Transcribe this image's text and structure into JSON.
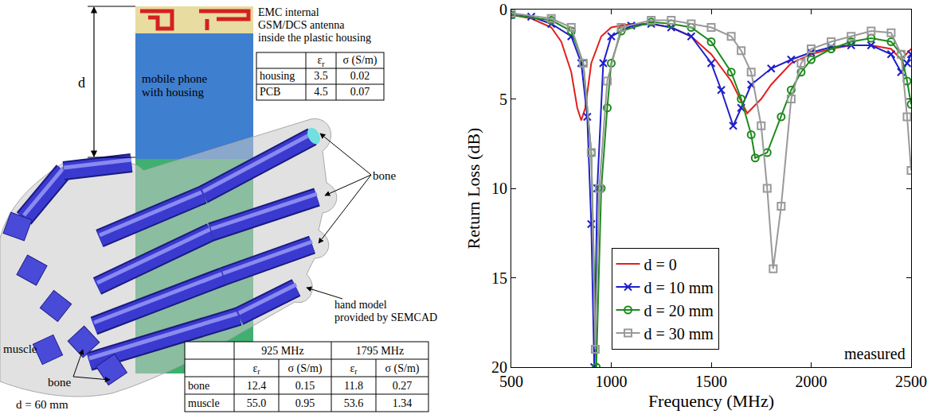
{
  "diagram": {
    "dimension_label": "d",
    "antenna_label": [
      "EMC internal",
      "GSM/DCS antenna",
      "inside the plastic housing"
    ],
    "phone_label": [
      "mobile phone",
      "with housing"
    ],
    "material_table": {
      "columns": [
        "εr",
        "σ (S/m)"
      ],
      "rows": [
        {
          "name": "housing",
          "values": [
            "3.5",
            "0.02"
          ]
        },
        {
          "name": "PCB",
          "values": [
            "4.5",
            "0.07"
          ]
        }
      ]
    },
    "bone_labels": [
      "bone",
      "bone"
    ],
    "muscle_label": "muscle",
    "hand_label": [
      "hand model",
      "provided by SEMCAD"
    ],
    "distance_label": "d = 60 mm",
    "tissue_table": {
      "frequencies": [
        "925 MHz",
        "1795 MHz"
      ],
      "columns": [
        "εr",
        "σ (S/m)"
      ],
      "rows": [
        {
          "name": "bone",
          "values": [
            "12.4",
            "0.15",
            "11.8",
            "0.27"
          ]
        },
        {
          "name": "muscle",
          "values": [
            "55.0",
            "0.95",
            "53.6",
            "1.34"
          ]
        }
      ]
    }
  },
  "chart_data": {
    "type": "line",
    "x_label": "Frequency (MHz)",
    "y_label": "Return Loss (dB)",
    "annotation": "measured",
    "xlim": [
      500,
      2500
    ],
    "xticks": [
      500,
      1000,
      1500,
      2000,
      2500
    ],
    "ylim": [
      20,
      0
    ],
    "yticks": [
      0,
      5,
      10,
      15,
      20
    ],
    "grid": false,
    "legend": "lower left",
    "series": [
      {
        "name": "d = 0",
        "color": "#e0211d",
        "marker": "none",
        "line_style": "solid",
        "x": [
          500,
          600,
          700,
          750,
          800,
          830,
          850,
          870,
          900,
          950,
          1000,
          1100,
          1200,
          1300,
          1400,
          1500,
          1600,
          1680,
          1750,
          1800,
          1900,
          2000,
          2100,
          2200,
          2300,
          2400,
          2450,
          2500
        ],
        "values": [
          0.3,
          0.5,
          1.0,
          1.8,
          3.5,
          5.5,
          6.2,
          5.5,
          3.0,
          1.5,
          1.0,
          0.8,
          0.8,
          1.0,
          1.5,
          2.5,
          4.0,
          5.8,
          5.0,
          4.2,
          3.0,
          2.5,
          2.2,
          2.0,
          2.0,
          2.2,
          2.8,
          2.2
        ]
      },
      {
        "name": "d = 10 mm",
        "color": "#1f1fc8",
        "marker": "x",
        "line_style": "solid",
        "x": [
          500,
          600,
          700,
          800,
          850,
          880,
          900,
          915,
          930,
          960,
          1000,
          1100,
          1200,
          1300,
          1400,
          1500,
          1550,
          1610,
          1650,
          1700,
          1800,
          1900,
          2000,
          2100,
          2200,
          2300,
          2400,
          2450,
          2480,
          2500
        ],
        "values": [
          0.3,
          0.4,
          0.8,
          1.5,
          3.0,
          6.0,
          12.0,
          20.0,
          10.0,
          3.0,
          1.5,
          0.9,
          0.8,
          1.0,
          1.5,
          3.0,
          4.5,
          6.5,
          5.5,
          4.2,
          3.3,
          2.8,
          2.4,
          2.1,
          2.0,
          2.0,
          2.5,
          3.5,
          3.0,
          2.5
        ]
      },
      {
        "name": "d = 20 mm",
        "color": "#1e8a1e",
        "marker": "circle",
        "line_style": "solid",
        "x": [
          500,
          700,
          800,
          860,
          900,
          925,
          950,
          980,
          1000,
          1050,
          1200,
          1300,
          1400,
          1500,
          1600,
          1650,
          1700,
          1720,
          1780,
          1850,
          1900,
          1950,
          2000,
          2100,
          2200,
          2300,
          2400,
          2450,
          2480,
          2500
        ],
        "values": [
          0.3,
          0.6,
          1.2,
          3.0,
          8.0,
          20.0,
          10.0,
          5.5,
          3.0,
          1.2,
          0.7,
          0.8,
          1.0,
          1.8,
          3.5,
          5.0,
          7.0,
          8.3,
          8.0,
          6.0,
          4.5,
          3.5,
          2.8,
          2.2,
          1.8,
          1.6,
          1.8,
          2.5,
          4.0,
          5.3
        ]
      },
      {
        "name": "d = 30 mm",
        "color": "#999999",
        "marker": "square",
        "line_style": "solid",
        "x": [
          500,
          700,
          800,
          860,
          900,
          920,
          940,
          980,
          1050,
          1200,
          1300,
          1400,
          1500,
          1600,
          1650,
          1700,
          1750,
          1780,
          1810,
          1850,
          1900,
          1950,
          2000,
          2100,
          2200,
          2300,
          2400,
          2450,
          2480,
          2500
        ],
        "values": [
          0.2,
          0.5,
          1.0,
          3.0,
          8.0,
          19.0,
          10.0,
          4.0,
          1.0,
          0.6,
          0.6,
          0.8,
          1.0,
          1.5,
          2.3,
          3.5,
          6.5,
          10.0,
          14.5,
          11.0,
          5.0,
          3.0,
          2.2,
          1.8,
          1.5,
          1.2,
          1.3,
          2.5,
          6.0,
          9.0
        ]
      }
    ]
  }
}
